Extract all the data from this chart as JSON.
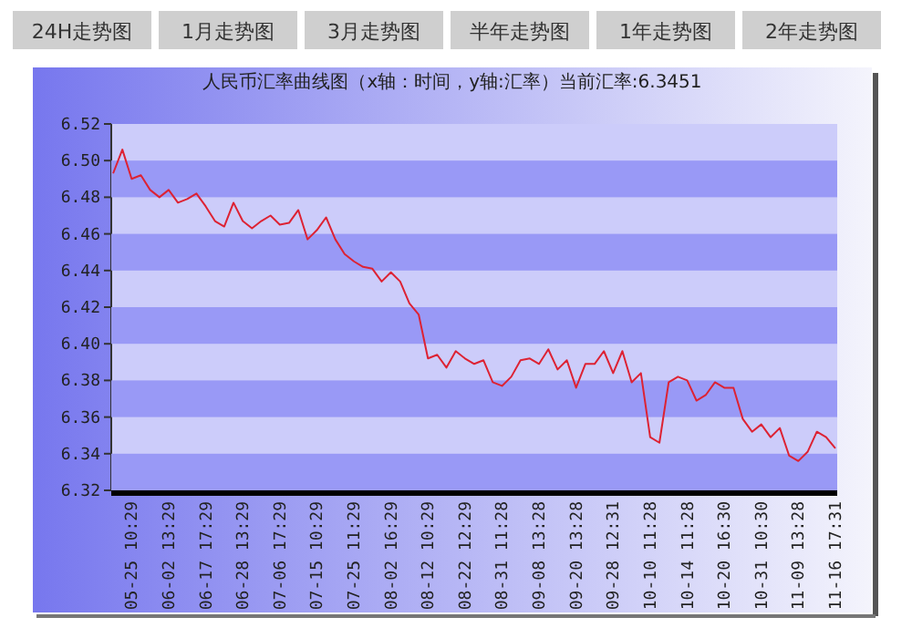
{
  "chart_data": {
    "type": "line",
    "title": "人民币汇率曲线图（x轴：时间，y轴:汇率）当前汇率:6.3451",
    "annotations": [
      "24H走势图",
      "1月走势图",
      "3月走势图",
      "半年走势图",
      "1年走势图",
      "2年走势图"
    ],
    "categories": [
      null,
      null,
      "05-25 10:29",
      null,
      null,
      null,
      "06-02 13:29",
      null,
      null,
      null,
      "06-17 17:29",
      null,
      null,
      null,
      "06-28 13:29",
      null,
      null,
      null,
      "07-06 17:29",
      null,
      null,
      null,
      "07-15 10:29",
      null,
      null,
      null,
      "07-25 11:29",
      null,
      null,
      null,
      "08-02 16:29",
      null,
      null,
      null,
      "08-12 10:29",
      null,
      null,
      null,
      "08-22 12:29",
      null,
      null,
      null,
      "08-31 11:28",
      null,
      null,
      null,
      "09-08 13:28",
      null,
      null,
      null,
      "09-20 13:28",
      null,
      null,
      null,
      "09-28 12:31",
      null,
      null,
      null,
      "10-10 11:28",
      null,
      null,
      null,
      "10-14 11:28",
      null,
      null,
      null,
      "10-20 16:30",
      null,
      null,
      null,
      "10-31 10:30",
      null,
      null,
      null,
      "11-09 13:28",
      null,
      null,
      null,
      "11-16 17:31"
    ],
    "ylim": [
      6.32,
      6.52
    ],
    "yticks": [
      {
        "value": 6.32,
        "label": "6.32"
      },
      {
        "value": 6.34,
        "label": "6.34"
      },
      {
        "value": 6.36,
        "label": "6.36"
      },
      {
        "value": 6.38,
        "label": "6.38"
      },
      {
        "value": 6.4,
        "label": "6.40"
      },
      {
        "value": 6.42,
        "label": "6.42"
      },
      {
        "value": 6.44,
        "label": "6.44"
      },
      {
        "value": 6.46,
        "label": "6.46"
      },
      {
        "value": 6.48,
        "label": "6.48"
      },
      {
        "value": 6.5,
        "label": "6.50"
      },
      {
        "value": 6.52,
        "label": "6.52"
      }
    ],
    "bands": [
      {
        "axis": "y",
        "from": 6.32,
        "to": 6.34,
        "color": "#9999f6"
      },
      {
        "axis": "y",
        "from": 6.36,
        "to": 6.38,
        "color": "#9999f6"
      },
      {
        "axis": "y",
        "from": 6.4,
        "to": 6.42,
        "color": "#9999f6"
      },
      {
        "axis": "y",
        "from": 6.44,
        "to": 6.46,
        "color": "#9999f6"
      },
      {
        "axis": "y",
        "from": 6.48,
        "to": 6.5,
        "color": "#9999f6"
      }
    ],
    "marker": "none",
    "line_style": "solid",
    "series": [
      {
        "color": "#dd2233",
        "values": [
          6.493,
          6.506,
          6.49,
          6.492,
          6.484,
          6.48,
          6.484,
          6.477,
          6.479,
          6.482,
          6.475,
          6.467,
          6.464,
          6.477,
          6.467,
          6.463,
          6.467,
          6.47,
          6.465,
          6.466,
          6.473,
          6.457,
          6.462,
          6.469,
          6.457,
          6.449,
          6.445,
          6.442,
          6.441,
          6.434,
          6.439,
          6.434,
          6.422,
          6.416,
          6.392,
          6.394,
          6.387,
          6.396,
          6.392,
          6.389,
          6.391,
          6.379,
          6.377,
          6.382,
          6.391,
          6.392,
          6.389,
          6.397,
          6.386,
          6.391,
          6.376,
          6.389,
          6.389,
          6.396,
          6.384,
          6.396,
          6.379,
          6.384,
          6.349,
          6.346,
          6.379,
          6.382,
          6.38,
          6.369,
          6.372,
          6.379,
          6.376,
          6.376,
          6.359,
          6.352,
          6.356,
          6.349,
          6.354,
          6.339,
          6.336,
          6.341,
          6.352,
          6.349,
          6.343
        ]
      }
    ]
  }
}
